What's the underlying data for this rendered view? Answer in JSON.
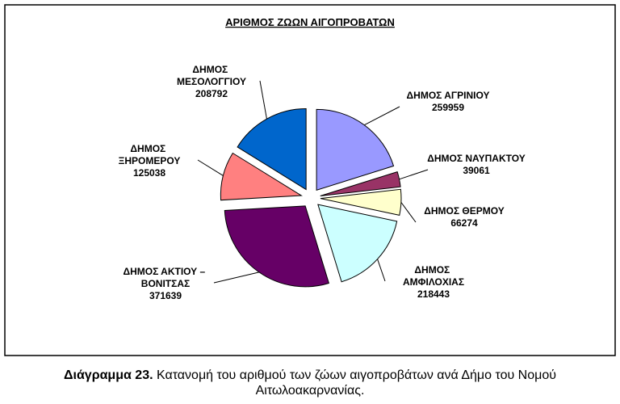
{
  "chart_data": {
    "type": "pie",
    "title": "ΑΡΙΘΜΟΣ ΖΩΩΝ ΑΙΓΟΠΡΟΒΑΤΩΝ",
    "categories": [
      "ΔΗΜΟΣ ΑΓΡΙΝΙΟΥ",
      "ΔΗΜΟΣ ΝΑΥΠΑΚΤΟΥ",
      "ΔΗΜΟΣ ΘΕΡΜΟΥ",
      "ΔΗΜΟΣ ΑΜΦΙΛΟΧΙΑΣ",
      "ΔΗΜΟΣ ΑΚΤΙΟΥ – ΒΟΝΙΤΣΑΣ",
      "ΔΗΜΟΣ ΞΗΡΟΜΕΡΟΥ",
      "ΔΗΜΟΣ ΜΕΣΟΛΟΓΓΙΟΥ"
    ],
    "values": [
      259959,
      39061,
      66274,
      218443,
      371639,
      125038,
      208792
    ],
    "colors": [
      "#9999ff",
      "#993366",
      "#ffffcc",
      "#ccffff",
      "#660066",
      "#ff8080",
      "#0066cc"
    ]
  },
  "caption": {
    "label": "Διάγραμμα 23.",
    "text": "Κατανομή του αριθμού των ζώων αιγοπροβάτων ανά Δήμο του Νομού Αιτωλοακαρνανίας."
  }
}
